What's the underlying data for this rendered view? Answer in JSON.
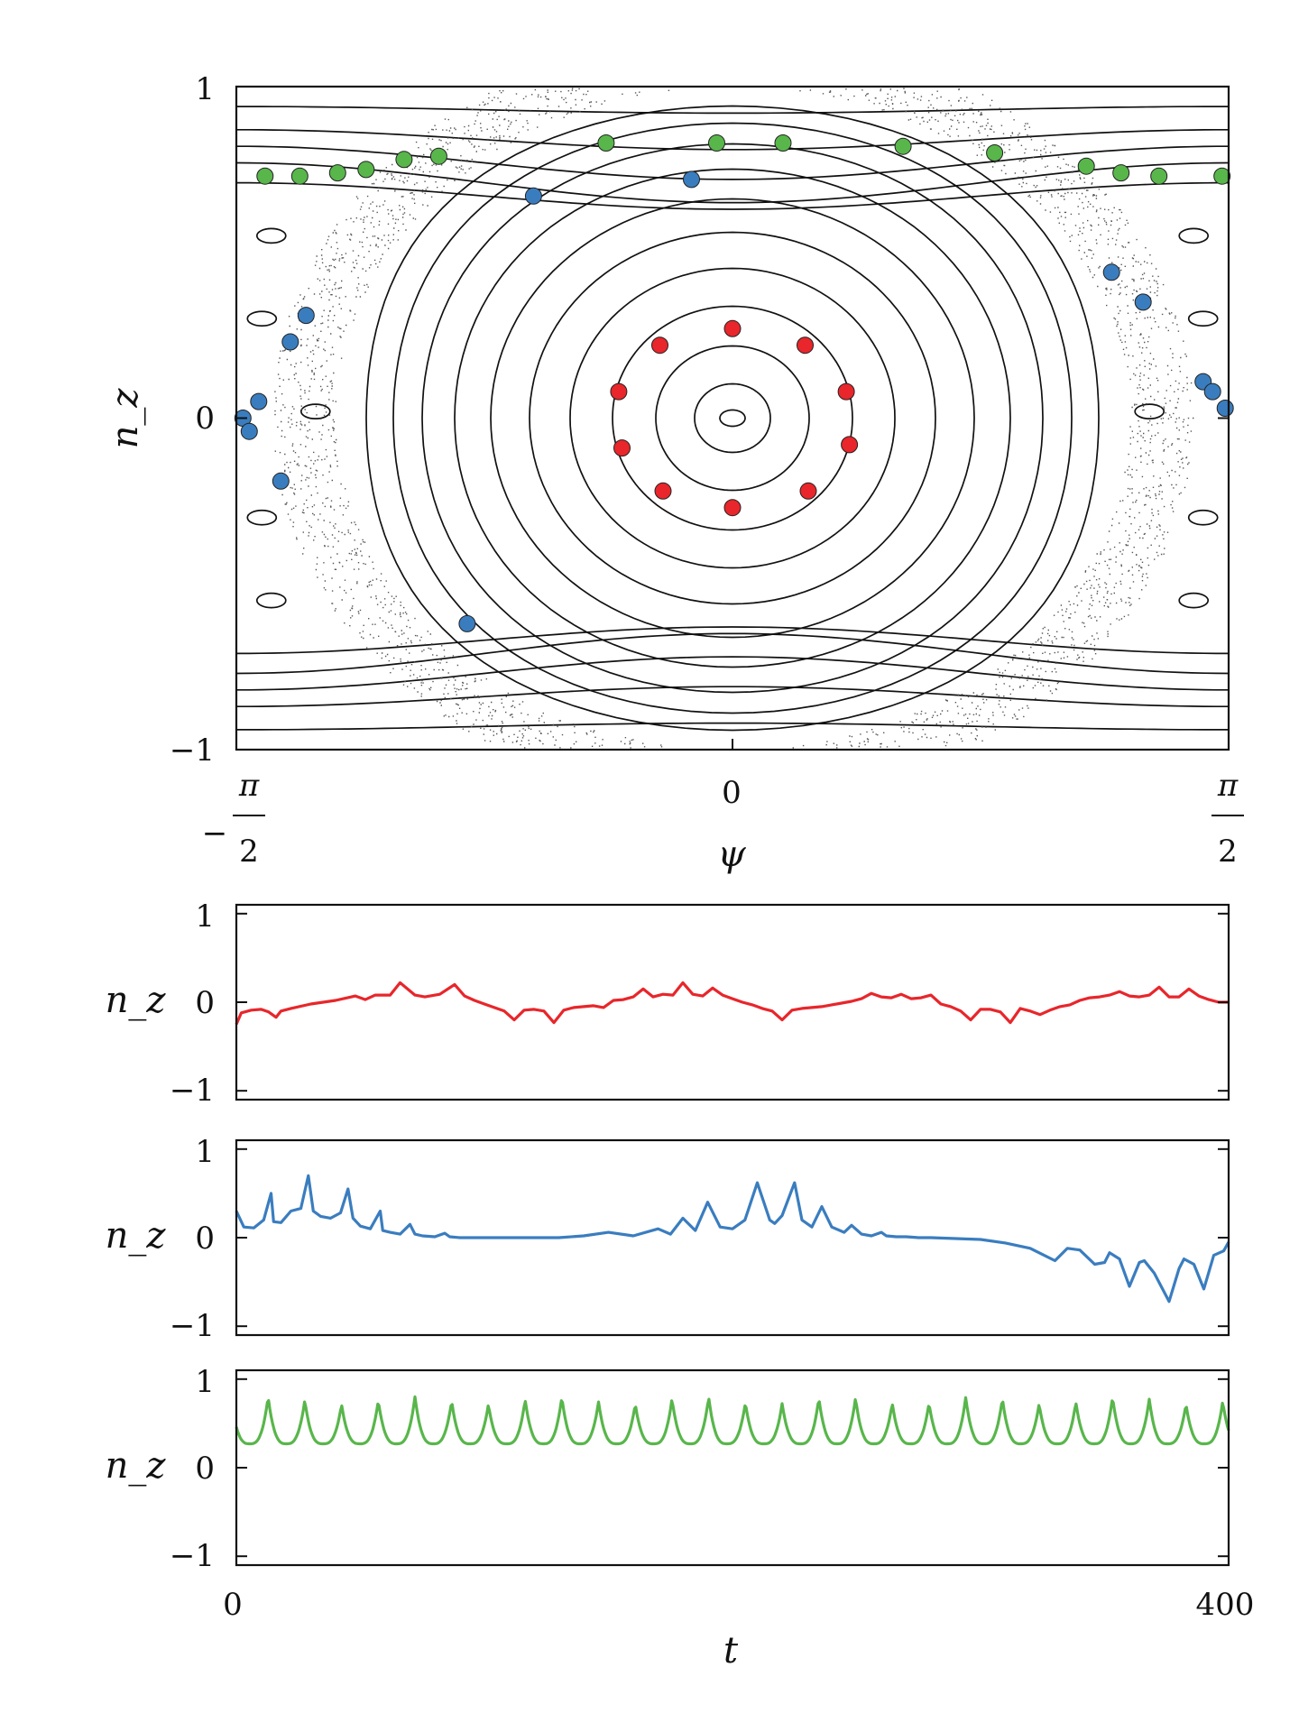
{
  "chart_data": [
    {
      "type": "scatter",
      "title": "",
      "xlabel": "ψ",
      "ylabel": "n_z",
      "xlim": [
        -1.5708,
        1.5708
      ],
      "ylim": [
        -1,
        1
      ],
      "x_ticks": [
        {
          "value": -1.5708,
          "sign": "−",
          "num": "π",
          "den": "2"
        },
        {
          "value": 0,
          "label": "0"
        },
        {
          "value": 1.5708,
          "sign": "",
          "num": "π",
          "den": "2"
        }
      ],
      "y_ticks": [
        {
          "value": 1,
          "label": "1"
        },
        {
          "value": 0,
          "label": "0"
        },
        {
          "value": -1,
          "label": "−1"
        }
      ],
      "grid": false,
      "legend": "none",
      "series": [
        {
          "color": "#e8262b",
          "points": [
            [
              0.0,
              0.27
            ],
            [
              0.23,
              0.22
            ],
            [
              0.36,
              0.08
            ],
            [
              0.37,
              -0.08
            ],
            [
              0.24,
              -0.22
            ],
            [
              0.0,
              -0.27
            ],
            [
              -0.22,
              -0.22
            ],
            [
              -0.35,
              -0.09
            ],
            [
              -0.36,
              0.08
            ],
            [
              -0.23,
              0.22
            ]
          ]
        },
        {
          "color": "#3a7dbf",
          "points": [
            [
              -0.63,
              0.67
            ],
            [
              -0.13,
              0.72
            ],
            [
              1.2,
              0.44
            ],
            [
              1.3,
              0.35
            ],
            [
              1.49,
              0.11
            ],
            [
              1.52,
              0.08
            ],
            [
              1.56,
              0.03
            ],
            [
              -1.5,
              0.05
            ],
            [
              -1.55,
              0.0
            ],
            [
              -1.53,
              -0.04
            ],
            [
              -1.43,
              -0.19
            ],
            [
              -1.4,
              0.23
            ],
            [
              -1.35,
              0.31
            ],
            [
              -0.84,
              -0.62
            ]
          ]
        },
        {
          "color": "#58b64b",
          "points": [
            [
              -1.48,
              0.73
            ],
            [
              -1.37,
              0.73
            ],
            [
              -1.25,
              0.74
            ],
            [
              -1.16,
              0.75
            ],
            [
              -1.04,
              0.78
            ],
            [
              -0.93,
              0.79
            ],
            [
              -0.4,
              0.83
            ],
            [
              -0.05,
              0.83
            ],
            [
              0.16,
              0.83
            ],
            [
              0.54,
              0.82
            ],
            [
              0.83,
              0.8
            ],
            [
              1.12,
              0.76
            ],
            [
              1.23,
              0.74
            ],
            [
              1.35,
              0.73
            ],
            [
              1.55,
              0.73
            ]
          ]
        }
      ]
    },
    {
      "type": "line",
      "title": "",
      "xlabel": "",
      "ylabel": "n_z",
      "xlim": [
        0,
        400
      ],
      "ylim": [
        -1.1,
        1.1
      ],
      "y_ticks": [
        {
          "value": 1,
          "label": "1"
        },
        {
          "value": 0,
          "label": "0"
        },
        {
          "value": -1,
          "label": "−1"
        }
      ],
      "grid": false,
      "legend": "none",
      "series": [
        {
          "color": "#e8262b",
          "x": [
            0,
            2,
            6,
            10,
            13,
            16,
            18,
            22,
            30,
            40,
            48,
            52,
            56,
            62,
            66,
            72,
            76,
            82,
            88,
            92,
            96,
            100,
            104,
            108,
            112,
            116,
            120,
            124,
            128,
            132,
            136,
            140,
            144,
            148,
            152,
            156,
            160,
            164,
            168,
            172,
            176,
            180,
            184,
            188,
            192,
            196,
            200,
            204,
            208,
            212,
            216,
            220,
            224,
            228,
            232,
            236,
            240,
            244,
            248,
            252,
            256,
            260,
            264,
            268,
            272,
            276,
            280,
            284,
            288,
            292,
            296,
            300,
            304,
            308,
            312,
            316,
            320,
            324,
            328,
            332,
            336,
            340,
            344,
            348,
            352,
            356,
            360,
            364,
            368,
            372,
            376,
            380,
            384,
            388,
            392,
            396,
            400
          ],
          "y": [
            -0.25,
            -0.12,
            -0.09,
            -0.08,
            -0.11,
            -0.17,
            -0.1,
            -0.07,
            -0.02,
            0.02,
            0.07,
            0.03,
            0.08,
            0.08,
            0.22,
            0.08,
            0.06,
            0.09,
            0.2,
            0.07,
            0.02,
            -0.02,
            -0.06,
            -0.1,
            -0.2,
            -0.09,
            -0.08,
            -0.1,
            -0.23,
            -0.09,
            -0.06,
            -0.05,
            -0.04,
            -0.06,
            0.02,
            0.03,
            0.06,
            0.15,
            0.06,
            0.09,
            0.08,
            0.22,
            0.09,
            0.07,
            0.16,
            0.08,
            0.04,
            0.0,
            -0.03,
            -0.07,
            -0.1,
            -0.2,
            -0.09,
            -0.07,
            -0.06,
            -0.05,
            -0.03,
            -0.01,
            0.01,
            0.04,
            0.1,
            0.06,
            0.05,
            0.09,
            0.04,
            0.05,
            0.08,
            -0.02,
            -0.05,
            -0.1,
            -0.2,
            -0.08,
            -0.08,
            -0.11,
            -0.23,
            -0.07,
            -0.1,
            -0.14,
            -0.09,
            -0.05,
            -0.03,
            0.02,
            0.05,
            0.06,
            0.08,
            0.12,
            0.07,
            0.06,
            0.08,
            0.17,
            0.06,
            0.06,
            0.15,
            0.07,
            0.03,
            0.0,
            0.0
          ]
        }
      ]
    },
    {
      "type": "line",
      "title": "",
      "xlabel": "",
      "ylabel": "n_z",
      "xlim": [
        0,
        400
      ],
      "ylim": [
        -1.1,
        1.1
      ],
      "y_ticks": [
        {
          "value": 1,
          "label": "1"
        },
        {
          "value": 0,
          "label": "0"
        },
        {
          "value": -1,
          "label": "−1"
        }
      ],
      "grid": false,
      "legend": "none",
      "series": [
        {
          "color": "#3a7dbf",
          "x": [
            0,
            3,
            7,
            11,
            14,
            15,
            18,
            22,
            26,
            29,
            31,
            34,
            38,
            42,
            45,
            47,
            50,
            54,
            58,
            59,
            62,
            66,
            70,
            72,
            75,
            80,
            84,
            86,
            90,
            96,
            98,
            104,
            110,
            120,
            130,
            140,
            150,
            160,
            170,
            175,
            180,
            185,
            190,
            195,
            200,
            205,
            210,
            215,
            217,
            220,
            225,
            228,
            232,
            236,
            240,
            245,
            248,
            252,
            256,
            260,
            262,
            266,
            270,
            275,
            280,
            290,
            300,
            310,
            320,
            330,
            335,
            340,
            346,
            350,
            352,
            356,
            360,
            364,
            366,
            370,
            376,
            380,
            382,
            386,
            390,
            394,
            398,
            400
          ],
          "y": [
            0.3,
            0.12,
            0.11,
            0.2,
            0.5,
            0.18,
            0.17,
            0.3,
            0.33,
            0.7,
            0.3,
            0.24,
            0.22,
            0.28,
            0.55,
            0.22,
            0.13,
            0.1,
            0.3,
            0.08,
            0.06,
            0.04,
            0.15,
            0.04,
            0.02,
            0.01,
            0.05,
            0.01,
            0.0,
            0.0,
            0.0,
            0.0,
            0.0,
            0.0,
            0.0,
            0.02,
            0.06,
            0.02,
            0.1,
            0.04,
            0.22,
            0.08,
            0.4,
            0.12,
            0.1,
            0.2,
            0.62,
            0.2,
            0.16,
            0.25,
            0.62,
            0.2,
            0.12,
            0.35,
            0.12,
            0.06,
            0.14,
            0.04,
            0.02,
            0.06,
            0.02,
            0.01,
            0.01,
            0.0,
            0.0,
            -0.01,
            -0.02,
            -0.06,
            -0.12,
            -0.26,
            -0.12,
            -0.14,
            -0.3,
            -0.28,
            -0.17,
            -0.24,
            -0.55,
            -0.28,
            -0.26,
            -0.4,
            -0.72,
            -0.35,
            -0.24,
            -0.3,
            -0.58,
            -0.2,
            -0.15,
            -0.05
          ]
        }
      ]
    },
    {
      "type": "line",
      "title": "",
      "xlabel": "t",
      "ylabel": "n_z",
      "xlim": [
        0,
        400
      ],
      "ylim": [
        -1.1,
        1.1
      ],
      "x_ticks": [
        {
          "value": 0,
          "label": "0"
        },
        {
          "value": 400,
          "label": "400"
        }
      ],
      "y_ticks": [
        {
          "value": 1,
          "label": "1"
        },
        {
          "value": 0,
          "label": "0"
        },
        {
          "value": -1,
          "label": "−1"
        }
      ],
      "grid": false,
      "legend": "none",
      "series": [
        {
          "color": "#58b64b",
          "period": 14.8,
          "phase": 2.0,
          "min": 0.27,
          "max": 0.8
        }
      ]
    }
  ]
}
